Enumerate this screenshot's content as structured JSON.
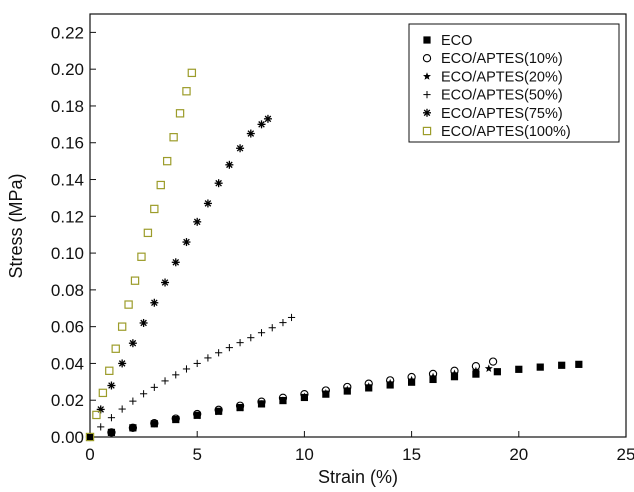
{
  "chart_data": {
    "type": "scatter",
    "xlabel": "Strain (%)",
    "ylabel": "Stress (MPa)",
    "xlim": [
      0,
      25
    ],
    "ylim": [
      0,
      0.23
    ],
    "xticks": [
      "0",
      "5",
      "10",
      "15",
      "20",
      "25"
    ],
    "yticks": [
      "0.00",
      "0.02",
      "0.04",
      "0.06",
      "0.08",
      "0.10",
      "0.12",
      "0.14",
      "0.16",
      "0.18",
      "0.20",
      "0.22"
    ],
    "grid": false,
    "legend_position": "top-right",
    "series": [
      {
        "name": "ECO",
        "marker": "filled-square",
        "color": "#000000",
        "x": [
          0,
          1,
          2,
          3,
          4,
          5,
          6,
          7,
          8,
          9,
          10,
          11,
          12,
          13,
          14,
          15,
          16,
          17,
          18,
          19,
          20,
          21,
          22,
          22.8
        ],
        "y": [
          0,
          0.0025,
          0.005,
          0.0072,
          0.0095,
          0.0118,
          0.014,
          0.016,
          0.018,
          0.0198,
          0.0215,
          0.0233,
          0.025,
          0.0267,
          0.0283,
          0.0298,
          0.0313,
          0.0328,
          0.0342,
          0.0355,
          0.0368,
          0.038,
          0.039,
          0.0395
        ]
      },
      {
        "name": "ECO/APTES(10%)",
        "marker": "open-circle",
        "color": "#000000",
        "x": [
          0,
          1,
          2,
          3,
          4,
          5,
          6,
          7,
          8,
          9,
          10,
          11,
          12,
          13,
          14,
          15,
          16,
          17,
          18,
          18.8
        ],
        "y": [
          0,
          0.0025,
          0.005,
          0.0075,
          0.01,
          0.0125,
          0.0148,
          0.017,
          0.0192,
          0.0213,
          0.0233,
          0.0253,
          0.0272,
          0.029,
          0.0308,
          0.0326,
          0.0343,
          0.036,
          0.0385,
          0.041
        ]
      },
      {
        "name": "ECO/APTES(20%)",
        "marker": "star",
        "color": "#000000",
        "x": [
          0,
          1,
          2,
          3,
          4,
          5,
          6,
          7,
          8,
          9,
          10,
          11,
          12,
          13,
          14,
          15,
          16,
          17,
          18,
          18.6
        ],
        "y": [
          0,
          0.0025,
          0.0048,
          0.007,
          0.0093,
          0.0115,
          0.0137,
          0.0158,
          0.0179,
          0.0199,
          0.0219,
          0.0238,
          0.0257,
          0.0275,
          0.0293,
          0.031,
          0.0327,
          0.0344,
          0.036,
          0.0372
        ]
      },
      {
        "name": "ECO/APTES(50%)",
        "marker": "plus",
        "color": "#000000",
        "x": [
          0,
          0.5,
          1,
          1.5,
          2,
          2.5,
          3,
          3.5,
          4,
          4.5,
          5,
          5.5,
          6,
          6.5,
          7,
          7.5,
          8,
          8.5,
          9,
          9.4
        ],
        "y": [
          0,
          0.0055,
          0.0105,
          0.0152,
          0.0195,
          0.0235,
          0.027,
          0.0305,
          0.0338,
          0.037,
          0.04,
          0.043,
          0.0458,
          0.0486,
          0.0513,
          0.054,
          0.0567,
          0.0594,
          0.0622,
          0.065
        ]
      },
      {
        "name": "ECO/APTES(75%)",
        "marker": "asterisk",
        "color": "#000000",
        "x": [
          0,
          0.5,
          1,
          1.5,
          2,
          2.5,
          3,
          3.5,
          4,
          4.5,
          5,
          5.5,
          6,
          6.5,
          7,
          7.5,
          8,
          8.3
        ],
        "y": [
          0,
          0.015,
          0.028,
          0.04,
          0.051,
          0.062,
          0.073,
          0.084,
          0.095,
          0.106,
          0.117,
          0.127,
          0.138,
          0.148,
          0.157,
          0.165,
          0.17,
          0.173
        ]
      },
      {
        "name": "ECO/APTES(100%)",
        "marker": "open-square",
        "color": "#9c9c2a",
        "x": [
          0,
          0.3,
          0.6,
          0.9,
          1.2,
          1.5,
          1.8,
          2.1,
          2.4,
          2.7,
          3.0,
          3.3,
          3.6,
          3.9,
          4.2,
          4.5,
          4.75
        ],
        "y": [
          0,
          0.012,
          0.024,
          0.036,
          0.048,
          0.06,
          0.072,
          0.085,
          0.098,
          0.111,
          0.124,
          0.137,
          0.15,
          0.163,
          0.176,
          0.188,
          0.198
        ]
      }
    ]
  }
}
